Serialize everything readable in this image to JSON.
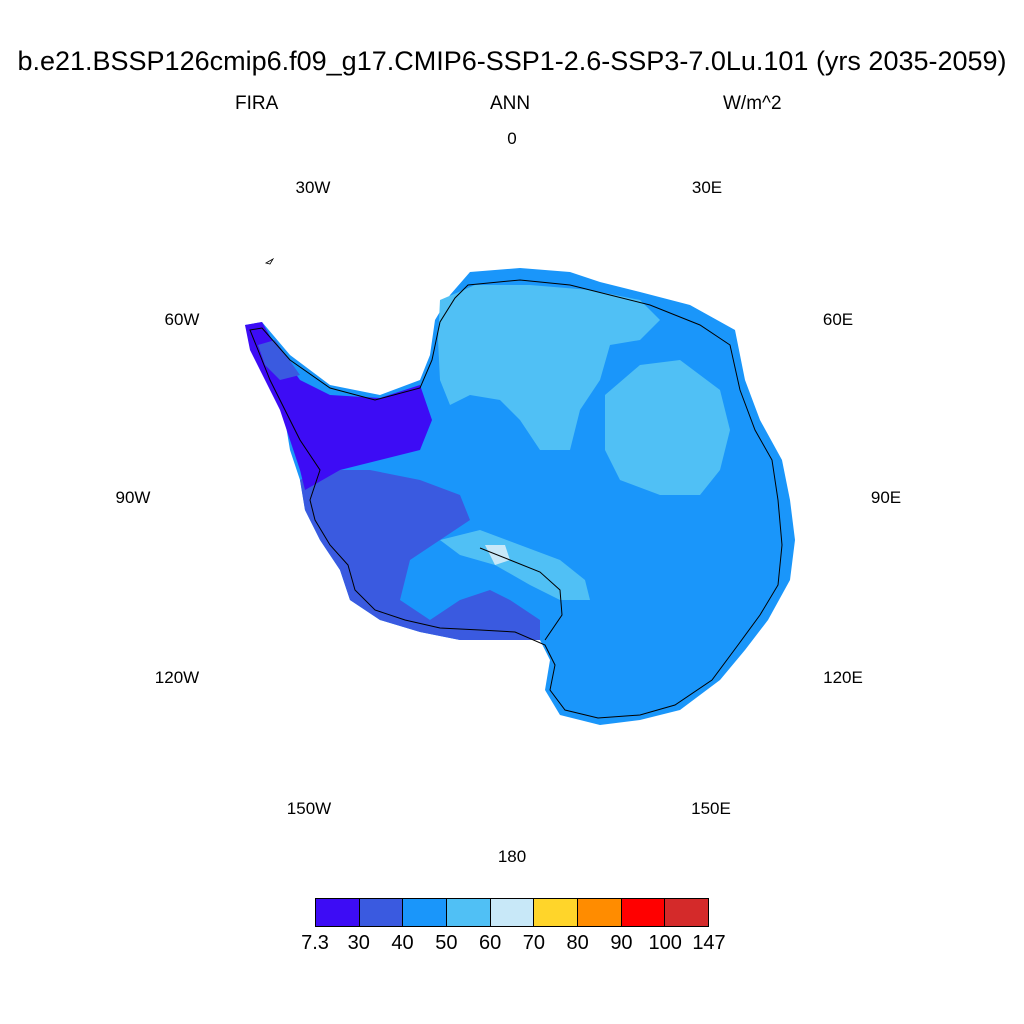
{
  "title": "b.e21.BSSP126cmip6.f09_g17.CMIP6-SSP1-2.6-SSP3-7.0Lu.101 (yrs 2035-2059)",
  "subtitle": {
    "left": "FIRA",
    "center": "ANN",
    "right": "W/m^2"
  },
  "longitude_labels": [
    "0",
    "30E",
    "60E",
    "90E",
    "120E",
    "150E",
    "180",
    "150W",
    "120W",
    "90W",
    "60W",
    "30W"
  ],
  "colorbar": {
    "labels": [
      "7.3",
      "30",
      "40",
      "50",
      "60",
      "70",
      "80",
      "90",
      "100",
      "147"
    ],
    "colors": [
      "#3d0cf5",
      "#3a5ae0",
      "#1a96fa",
      "#50c0f5",
      "#c8e8f8",
      "#ffd52a",
      "#ff8c00",
      "#ff0000",
      "#d42a2a"
    ]
  },
  "map": {
    "projection": "south-polar stereographic",
    "region": "Antarctica",
    "field_colors": {
      "peninsula": "#3d0cf5",
      "west": "#3a5ae0",
      "main": "#1a96fa",
      "light": "#50c0f5",
      "palest": "#c8e8f8"
    }
  }
}
